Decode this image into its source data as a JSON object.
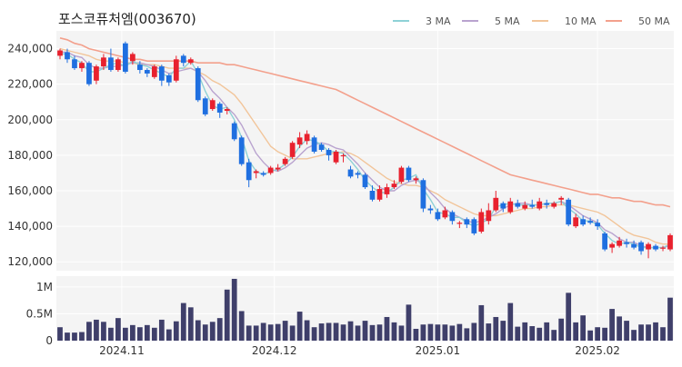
{
  "chart_data": [
    {
      "type": "candlestick",
      "title": "포스코퓨처엠(003670)",
      "ylim": [
        115000,
        250000
      ],
      "yticks": [
        "120,000",
        "140,000",
        "160,000",
        "180,000",
        "200,000",
        "220,000",
        "240,000"
      ],
      "ytick_values": [
        120000,
        140000,
        160000,
        180000,
        200000,
        220000,
        240000
      ],
      "xticks": [
        "2024.11",
        "2024.12",
        "2025.01",
        "2025.02"
      ],
      "xtick_index": [
        8.5,
        29.5,
        52,
        74
      ],
      "legend": [
        "3 MA",
        "5 MA",
        "10 MA",
        "50 MA"
      ],
      "colors": {
        "up": "#e8212e",
        "down": "#1f6fe0",
        "ma3": "#8ed1d6",
        "ma5": "#b9a3cf",
        "ma10": "#f2c59a",
        "ma50": "#f3a08c",
        "volume": "#3f3f6a",
        "plot_bg": "#f4f4f4",
        "grid": "#ffffff"
      },
      "candles": [
        [
          236000,
          239000,
          234000,
          240000
        ],
        [
          238000,
          234000,
          232000,
          240000
        ],
        [
          234000,
          229000,
          228000,
          236000
        ],
        [
          229000,
          232000,
          227000,
          233000
        ],
        [
          232000,
          220000,
          219000,
          233000
        ],
        [
          222000,
          230000,
          220000,
          231000
        ],
        [
          230000,
          235000,
          228000,
          237000
        ],
        [
          235000,
          228000,
          227000,
          240000
        ],
        [
          228000,
          234000,
          227000,
          235000
        ],
        [
          243000,
          227000,
          226000,
          244000
        ],
        [
          233000,
          237000,
          231000,
          238000
        ],
        [
          231000,
          228000,
          226000,
          233000
        ],
        [
          228000,
          226000,
          224000,
          229000
        ],
        [
          224000,
          230000,
          223000,
          231000
        ],
        [
          230000,
          222000,
          219000,
          231000
        ],
        [
          225000,
          221000,
          219000,
          226000
        ],
        [
          222000,
          234000,
          221000,
          236000
        ],
        [
          236000,
          232000,
          230000,
          237000
        ],
        [
          232000,
          234000,
          231000,
          235000
        ],
        [
          229000,
          211000,
          210000,
          230000
        ],
        [
          212000,
          203000,
          202000,
          213000
        ],
        [
          206000,
          211000,
          205000,
          212000
        ],
        [
          209000,
          204000,
          201000,
          210000
        ],
        [
          205000,
          206000,
          203000,
          207000
        ],
        [
          198000,
          189000,
          188000,
          199000
        ],
        [
          190000,
          175000,
          174000,
          191000
        ],
        [
          176000,
          166000,
          162000,
          178000
        ],
        [
          170000,
          171000,
          167000,
          172000
        ],
        [
          170000,
          169000,
          168000,
          171000
        ],
        [
          170000,
          173000,
          169000,
          174000
        ],
        [
          172000,
          173000,
          171000,
          175000
        ],
        [
          175000,
          178000,
          174000,
          179000
        ],
        [
          179000,
          187000,
          178000,
          188000
        ],
        [
          186000,
          190000,
          184000,
          193000
        ],
        [
          188000,
          192000,
          186000,
          194000
        ],
        [
          190000,
          182000,
          181000,
          191000
        ],
        [
          186000,
          183000,
          182000,
          187000
        ],
        [
          183000,
          180000,
          177000,
          184000
        ],
        [
          176000,
          182000,
          175000,
          183000
        ],
        [
          180000,
          180000,
          176000,
          181000
        ],
        [
          172000,
          168000,
          167000,
          174000
        ],
        [
          170000,
          169000,
          167000,
          171000
        ],
        [
          169000,
          162000,
          161000,
          170000
        ],
        [
          160000,
          155000,
          154000,
          163000
        ],
        [
          155000,
          161000,
          154000,
          163000
        ],
        [
          158000,
          162000,
          156000,
          164000
        ],
        [
          162000,
          164000,
          161000,
          166000
        ],
        [
          165000,
          173000,
          164000,
          174000
        ],
        [
          173000,
          166000,
          165000,
          174000
        ],
        [
          166000,
          167000,
          164000,
          168000
        ],
        [
          166000,
          150000,
          148000,
          167000
        ],
        [
          150000,
          149000,
          147000,
          152000
        ],
        [
          148000,
          144000,
          143000,
          150000
        ],
        [
          145000,
          149000,
          144000,
          151000
        ],
        [
          148000,
          143000,
          141000,
          149000
        ],
        [
          142000,
          142000,
          139000,
          143000
        ],
        [
          144000,
          141000,
          139000,
          145000
        ],
        [
          144000,
          136000,
          135000,
          145000
        ],
        [
          137000,
          148000,
          136000,
          150000
        ],
        [
          143000,
          149000,
          141000,
          153000
        ],
        [
          149000,
          156000,
          148000,
          160000
        ],
        [
          153000,
          150000,
          148000,
          154000
        ],
        [
          148000,
          154000,
          147000,
          156000
        ],
        [
          153000,
          151000,
          150000,
          155000
        ],
        [
          150000,
          152000,
          149000,
          154000
        ],
        [
          152000,
          151000,
          150000,
          155000
        ],
        [
          150000,
          154000,
          149000,
          156000
        ],
        [
          153000,
          152000,
          150000,
          155000
        ],
        [
          151000,
          153000,
          150000,
          154000
        ],
        [
          155000,
          156000,
          152000,
          157000
        ],
        [
          155000,
          141000,
          140000,
          156000
        ],
        [
          140000,
          145000,
          139000,
          147000
        ],
        [
          144000,
          141000,
          140000,
          146000
        ],
        [
          143000,
          142000,
          141000,
          145000
        ],
        [
          142000,
          140000,
          138000,
          144000
        ],
        [
          136000,
          127000,
          126000,
          137000
        ],
        [
          128000,
          130000,
          125000,
          131000
        ],
        [
          129000,
          132000,
          128000,
          134000
        ],
        [
          131000,
          130000,
          128000,
          133000
        ],
        [
          130000,
          128000,
          127000,
          132000
        ],
        [
          131000,
          126000,
          124000,
          132000
        ],
        [
          127000,
          130000,
          122000,
          131000
        ],
        [
          129000,
          127000,
          126000,
          130000
        ],
        [
          128000,
          128000,
          126000,
          129000
        ],
        [
          127000,
          135000,
          126000,
          136000
        ]
      ],
      "ma3": [
        237000,
        237000,
        234000,
        232000,
        227000,
        227000,
        229000,
        231000,
        232000,
        230000,
        233000,
        231000,
        230000,
        228000,
        226000,
        224000,
        229000,
        229000,
        233000,
        226000,
        216000,
        208000,
        206000,
        207000,
        200000,
        190000,
        177000,
        171000,
        169000,
        171000,
        172000,
        175000,
        179000,
        185000,
        189000,
        188000,
        186000,
        182000,
        182000,
        181000,
        177000,
        172000,
        166000,
        162000,
        159000,
        159000,
        162000,
        166000,
        167000,
        169000,
        161000,
        155000,
        148000,
        147000,
        145000,
        145000,
        142000,
        140000,
        142000,
        144000,
        151000,
        152000,
        153000,
        152000,
        152000,
        152000,
        152000,
        153000,
        153000,
        154000,
        150000,
        147000,
        143000,
        143000,
        141000,
        136000,
        132000,
        130000,
        131000,
        130000,
        128000,
        128000,
        128000,
        128000,
        130000
      ],
      "ma5": [
        238000,
        238000,
        236000,
        235000,
        231000,
        229000,
        229000,
        230000,
        230000,
        231000,
        232000,
        232000,
        231000,
        230000,
        228000,
        226000,
        227000,
        228000,
        229000,
        227000,
        222000,
        216000,
        212000,
        207000,
        203000,
        197000,
        189000,
        181000,
        176000,
        172000,
        171000,
        173000,
        176000,
        180000,
        184000,
        186000,
        187000,
        186000,
        184000,
        183000,
        179000,
        175000,
        170000,
        166000,
        162000,
        160000,
        160000,
        163000,
        165000,
        166000,
        164000,
        159000,
        155000,
        150000,
        147000,
        145000,
        143000,
        142000,
        143000,
        145000,
        147000,
        150000,
        152000,
        153000,
        153000,
        152000,
        152000,
        153000,
        153000,
        154000,
        152000,
        149000,
        146000,
        144000,
        142000,
        138000,
        136000,
        133000,
        131000,
        131000,
        129000,
        128000,
        128000,
        128000,
        129000
      ],
      "ma10": [
        240000,
        239000,
        238000,
        237000,
        236000,
        234000,
        233000,
        233000,
        233000,
        232000,
        232000,
        231000,
        231000,
        231000,
        230000,
        229000,
        229000,
        229000,
        229000,
        227000,
        225000,
        222000,
        220000,
        217000,
        214000,
        209000,
        203000,
        197000,
        191000,
        185000,
        182000,
        180000,
        178000,
        178000,
        178000,
        179000,
        180000,
        181000,
        181000,
        182000,
        181000,
        179000,
        176000,
        173000,
        170000,
        167000,
        165000,
        164000,
        163000,
        163000,
        162000,
        160000,
        158000,
        155000,
        153000,
        151000,
        149000,
        147000,
        146000,
        146000,
        146000,
        147000,
        148000,
        149000,
        150000,
        150000,
        151000,
        151000,
        152000,
        152000,
        152000,
        151000,
        150000,
        149000,
        148000,
        146000,
        143000,
        140000,
        137000,
        135000,
        134000,
        133000,
        131000,
        130000,
        130000
      ],
      "ma50": [
        246000,
        245000,
        243000,
        242000,
        240000,
        239000,
        238000,
        237000,
        236000,
        235000,
        234000,
        234000,
        233000,
        233000,
        233000,
        233000,
        233000,
        233000,
        233000,
        232000,
        232000,
        232000,
        232000,
        231000,
        231000,
        230000,
        229000,
        228000,
        227000,
        226000,
        225000,
        224000,
        223000,
        222000,
        221000,
        220000,
        219000,
        218000,
        217000,
        215000,
        213000,
        211000,
        209000,
        207000,
        205000,
        203000,
        201000,
        199000,
        197000,
        195000,
        193000,
        191000,
        189000,
        187000,
        185000,
        183000,
        181000,
        179000,
        177000,
        175000,
        173000,
        171000,
        169000,
        168000,
        167000,
        166000,
        165000,
        164000,
        163000,
        162000,
        161000,
        160000,
        159000,
        158000,
        158000,
        157000,
        156000,
        156000,
        155000,
        154000,
        154000,
        153000,
        152000,
        152000,
        151000
      ]
    },
    {
      "type": "bar",
      "ylabel": "",
      "ylim": [
        0,
        1200000
      ],
      "yticks": [
        "0",
        "0.5M",
        "1M"
      ],
      "ytick_values": [
        0,
        500000,
        1000000
      ],
      "values": [
        250000,
        150000,
        150000,
        160000,
        350000,
        390000,
        350000,
        240000,
        420000,
        240000,
        290000,
        250000,
        290000,
        240000,
        390000,
        210000,
        360000,
        700000,
        620000,
        380000,
        300000,
        350000,
        420000,
        950000,
        1150000,
        550000,
        280000,
        280000,
        330000,
        300000,
        310000,
        370000,
        280000,
        540000,
        380000,
        250000,
        320000,
        330000,
        330000,
        300000,
        360000,
        280000,
        370000,
        290000,
        300000,
        440000,
        340000,
        280000,
        670000,
        220000,
        300000,
        310000,
        300000,
        300000,
        280000,
        310000,
        230000,
        330000,
        660000,
        320000,
        440000,
        370000,
        700000,
        260000,
        340000,
        270000,
        240000,
        340000,
        200000,
        410000,
        890000,
        340000,
        470000,
        190000,
        250000,
        240000,
        590000,
        450000,
        370000,
        200000,
        300000,
        300000,
        340000,
        250000,
        800000
      ]
    }
  ]
}
